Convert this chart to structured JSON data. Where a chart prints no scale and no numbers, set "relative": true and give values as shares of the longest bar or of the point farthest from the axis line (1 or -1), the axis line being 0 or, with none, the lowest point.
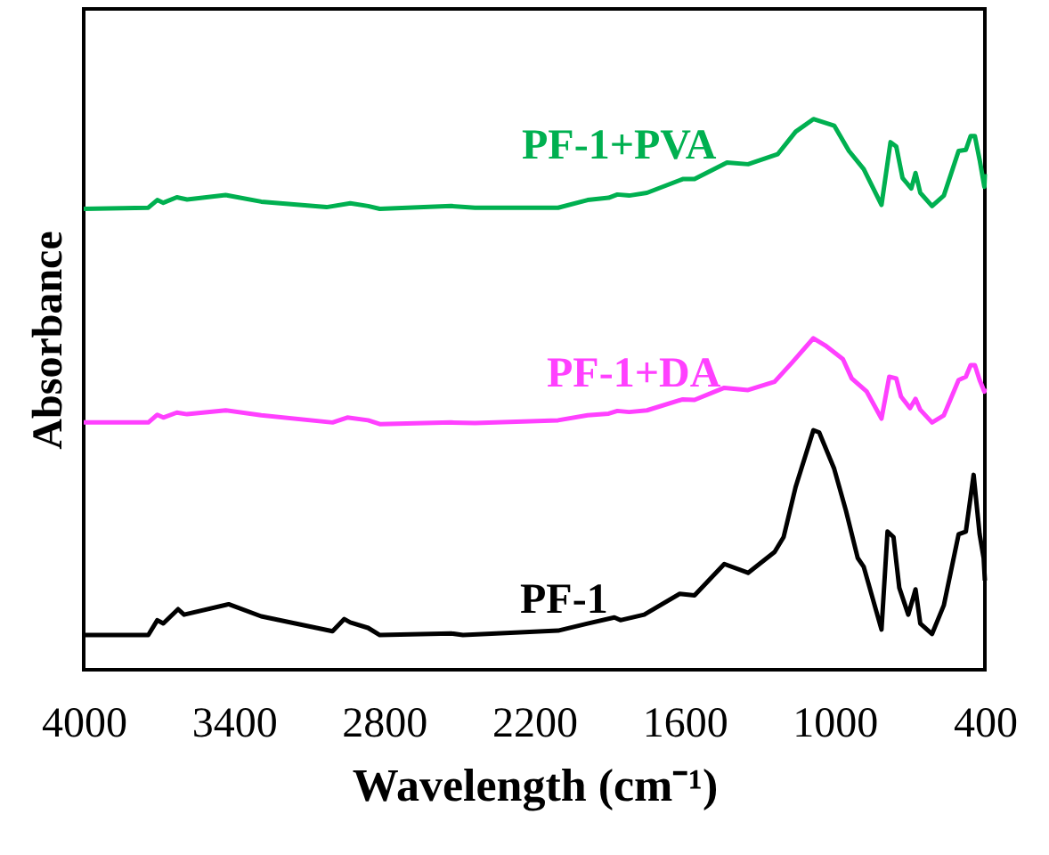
{
  "chart_data": {
    "type": "line",
    "relative": true,
    "xlabel": "Wavelength (cm⁻¹)",
    "ylabel": "Absorbance",
    "xlim": [
      4000,
      400
    ],
    "xticks": [
      4000,
      3400,
      2800,
      2200,
      1600,
      1000,
      400
    ],
    "grid": false,
    "marker": "none",
    "line_style": "solid",
    "series": [
      {
        "name": "PF-1+PVA",
        "color": "#00b050",
        "x": [
          4000,
          3742,
          3706,
          3682,
          3628,
          3587,
          3433,
          3291,
          3030,
          2935,
          2864,
          2817,
          2532,
          2437,
          2105,
          1987,
          1903,
          1868,
          1821,
          1750,
          1607,
          1560,
          1430,
          1346,
          1228,
          1156,
          1085,
          1002,
          943,
          884,
          813,
          777,
          754,
          729,
          694,
          677,
          658,
          611,
          564,
          505,
          476,
          457,
          440,
          421,
          402,
          400
        ],
        "values": [
          0.837,
          0.839,
          0.853,
          0.848,
          0.858,
          0.854,
          0.862,
          0.85,
          0.84,
          0.847,
          0.842,
          0.837,
          0.842,
          0.839,
          0.839,
          0.853,
          0.857,
          0.863,
          0.861,
          0.866,
          0.891,
          0.891,
          0.921,
          0.918,
          0.936,
          0.977,
          1.0,
          0.988,
          0.942,
          0.909,
          0.844,
          0.958,
          0.95,
          0.893,
          0.874,
          0.902,
          0.866,
          0.842,
          0.861,
          0.942,
          0.944,
          0.969,
          0.969,
          0.926,
          0.877,
          0.9
        ]
      },
      {
        "name": "PF-1+DA",
        "color": "#ff40ff",
        "x": [
          4000,
          3742,
          3706,
          3682,
          3628,
          3587,
          3433,
          3291,
          3006,
          2947,
          2864,
          2817,
          2532,
          2437,
          2105,
          1987,
          1903,
          1868,
          1821,
          1750,
          1607,
          1560,
          1441,
          1346,
          1240,
          1168,
          1085,
          1038,
          967,
          932,
          872,
          813,
          782,
          754,
          735,
          699,
          677,
          658,
          611,
          564,
          505,
          476,
          457,
          440,
          421,
          402,
          400
        ],
        "values": [
          0.449,
          0.449,
          0.463,
          0.458,
          0.467,
          0.464,
          0.471,
          0.462,
          0.449,
          0.458,
          0.453,
          0.446,
          0.449,
          0.448,
          0.453,
          0.462,
          0.465,
          0.47,
          0.468,
          0.471,
          0.491,
          0.49,
          0.512,
          0.508,
          0.523,
          0.559,
          0.602,
          0.589,
          0.564,
          0.529,
          0.505,
          0.456,
          0.532,
          0.529,
          0.496,
          0.475,
          0.492,
          0.472,
          0.449,
          0.462,
          0.526,
          0.532,
          0.553,
          0.553,
          0.526,
          0.505,
          0.511
        ]
      },
      {
        "name": "PF-1",
        "color": "#000000",
        "x": [
          4000,
          3742,
          3706,
          3682,
          3623,
          3599,
          3421,
          3291,
          3006,
          2959,
          2935,
          2864,
          2817,
          2532,
          2485,
          2105,
          1987,
          1880,
          1856,
          1761,
          1619,
          1560,
          1441,
          1346,
          1240,
          1204,
          1156,
          1085,
          1062,
          1002,
          955,
          908,
          884,
          813,
          789,
          765,
          742,
          706,
          677,
          658,
          611,
          564,
          505,
          476,
          445,
          421,
          405,
          400
        ],
        "values": [
          0.063,
          0.063,
          0.09,
          0.084,
          0.11,
          0.1,
          0.119,
          0.097,
          0.07,
          0.092,
          0.086,
          0.076,
          0.063,
          0.066,
          0.063,
          0.071,
          0.084,
          0.095,
          0.09,
          0.1,
          0.138,
          0.135,
          0.192,
          0.176,
          0.214,
          0.241,
          0.332,
          0.435,
          0.431,
          0.365,
          0.289,
          0.203,
          0.187,
          0.073,
          0.251,
          0.241,
          0.149,
          0.1,
          0.146,
          0.084,
          0.065,
          0.117,
          0.246,
          0.251,
          0.354,
          0.246,
          0.203,
          0.162
        ]
      }
    ]
  }
}
